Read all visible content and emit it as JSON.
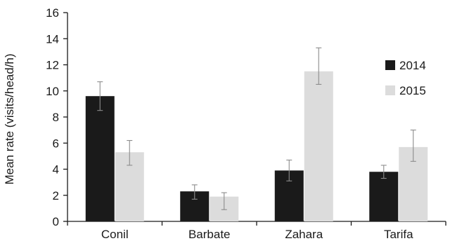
{
  "chart_data": {
    "type": "bar",
    "title": "",
    "xlabel": "",
    "ylabel": "Mean rate  (visits/head/h)",
    "categories": [
      "Conil",
      "Barbate",
      "Zahara",
      "Tarifa"
    ],
    "ylim": [
      0,
      16
    ],
    "yticks": [
      0,
      2,
      4,
      6,
      8,
      10,
      12,
      14,
      16
    ],
    "grid": false,
    "legend_position": "right",
    "series": [
      {
        "name": "2014",
        "color": "#1a1a1a",
        "values": [
          9.6,
          2.3,
          3.9,
          3.8
        ],
        "error_low": [
          8.5,
          1.7,
          3.1,
          3.3
        ],
        "error_high": [
          10.7,
          2.8,
          4.7,
          4.3
        ]
      },
      {
        "name": "2015",
        "color": "#dcdcdc",
        "values": [
          5.3,
          1.9,
          11.5,
          5.7
        ],
        "error_low": [
          4.3,
          0.9,
          10.5,
          4.6
        ],
        "error_high": [
          6.2,
          2.2,
          13.3,
          7.0
        ]
      }
    ]
  }
}
